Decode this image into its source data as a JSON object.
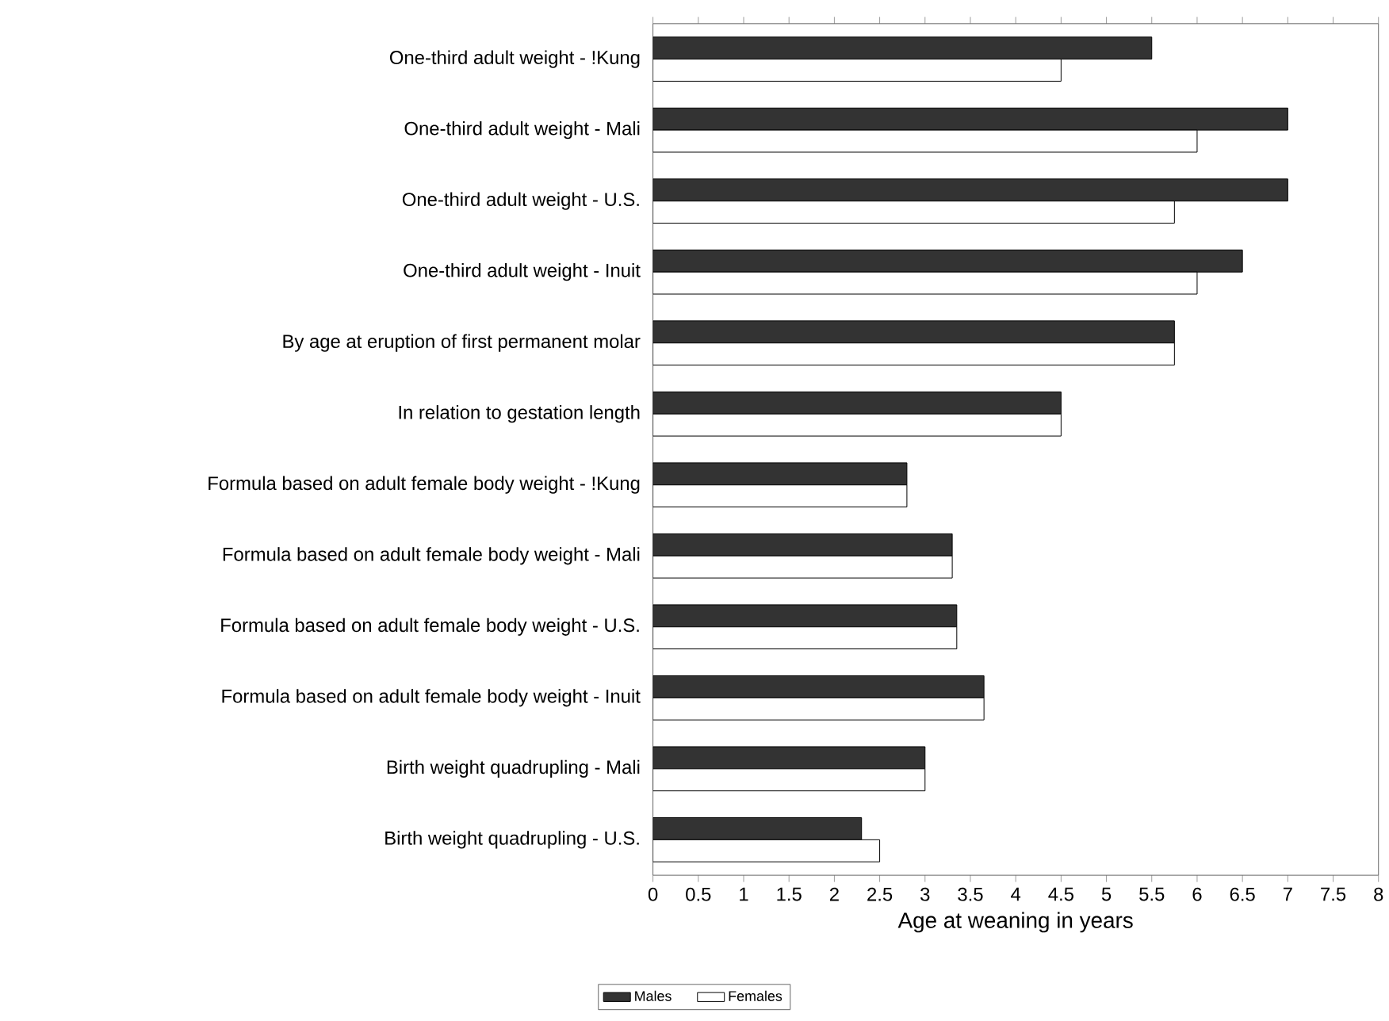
{
  "chart_data": {
    "type": "bar",
    "orientation": "horizontal",
    "xlabel": "Age at weaning in years",
    "categories": [
      "One-third adult weight - !Kung",
      "One-third adult weight - Mali",
      "One-third adult weight - U.S.",
      "One-third adult weight - Inuit",
      "By age at eruption of first permanent molar",
      "In relation to gestation length",
      "Formula based on adult female body weight - !Kung",
      "Formula based on adult female body weight - Mali",
      "Formula based on adult female body weight - U.S.",
      "Formula based on adult female body weight - Inuit",
      "Birth weight quadrupling - Mali",
      "Birth weight quadrupling - U.S."
    ],
    "series": [
      {
        "name": "Males",
        "color": "#333333",
        "values": [
          5.5,
          7.0,
          7.0,
          6.5,
          5.75,
          4.5,
          2.8,
          3.3,
          3.35,
          3.65,
          3.0,
          2.3
        ]
      },
      {
        "name": "Females",
        "color": "#ffffff",
        "values": [
          4.5,
          6.0,
          5.75,
          6.0,
          5.75,
          4.5,
          2.8,
          3.3,
          3.35,
          3.65,
          3.0,
          2.5
        ]
      }
    ],
    "xlim": [
      0,
      8
    ],
    "xticks": [
      0,
      0.5,
      1,
      1.5,
      2,
      2.5,
      3,
      3.5,
      4,
      4.5,
      5,
      5.5,
      6,
      6.5,
      7,
      7.5,
      8
    ],
    "grid": false,
    "legend": "bottom"
  }
}
